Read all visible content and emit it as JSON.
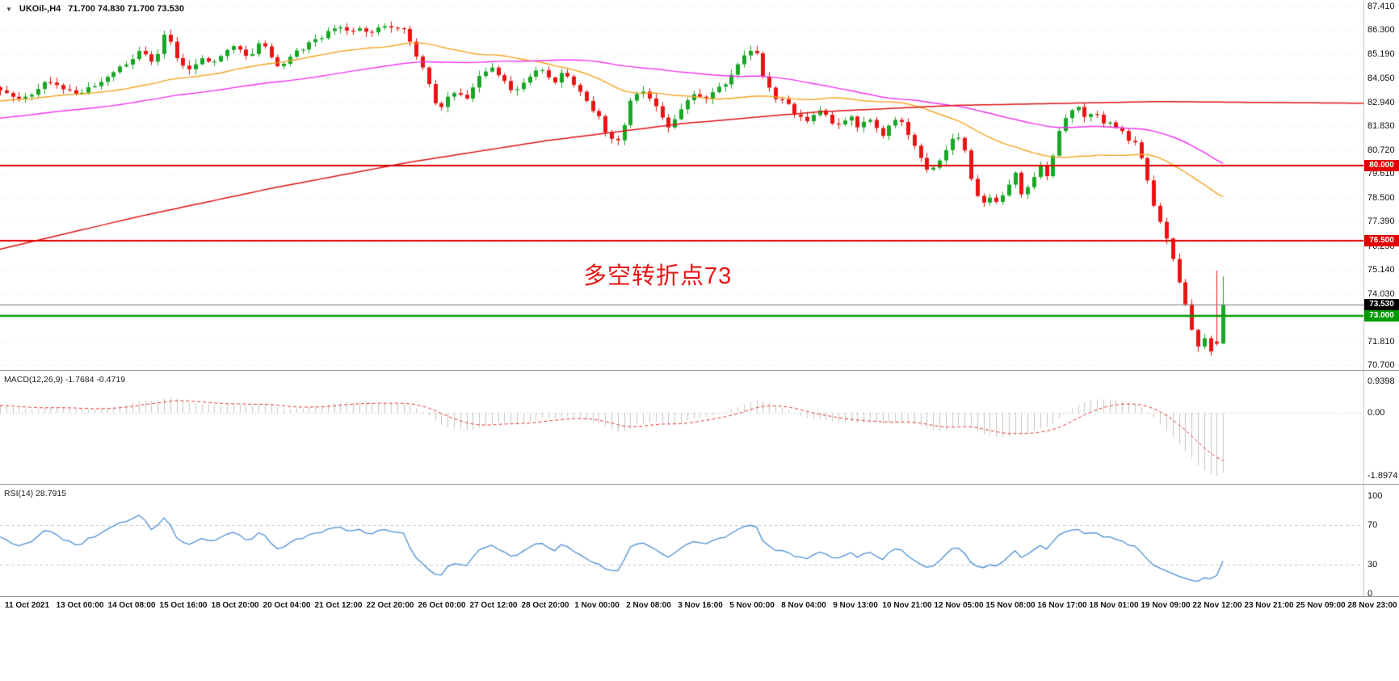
{
  "header": {
    "collapse_icon": "▼",
    "symbol_period": "UKOil-,H4",
    "ohlc_text": "71.700 74.830 71.700 73.530"
  },
  "annotation": {
    "text": "多空转折点73",
    "color": "#e81414"
  },
  "macd_panel": {
    "label": "MACD(12,26,9) -1.7684 -0.4719"
  },
  "rsi_panel": {
    "label": "RSI(14) 28.7915"
  },
  "chart_data": {
    "type": "candlestick",
    "symbol": "UKOil-",
    "timeframe": "H4",
    "current_ohlc": {
      "open": 71.7,
      "high": 74.83,
      "low": 71.7,
      "close": 73.53
    },
    "price_axis": {
      "max": 87.41,
      "min": 70.7,
      "labels": [
        "87.410",
        "86.300",
        "85.190",
        "84.050",
        "82.940",
        "81.830",
        "80.720",
        "79.610",
        "78.500",
        "77.390",
        "76.250",
        "75.140",
        "74.030",
        "71.810",
        "70.700"
      ]
    },
    "levels": [
      {
        "value": 80.0,
        "label": "80.000",
        "color": "#e00000",
        "width": 2
      },
      {
        "value": 76.5,
        "label": "76.500",
        "color": "#e00000",
        "width": 2
      },
      {
        "value": 73.0,
        "label": "73.000",
        "color": "#009a00",
        "width": 2.5
      }
    ],
    "current_price": {
      "value": 73.53,
      "label": "73.530",
      "badge_color": "#000000"
    },
    "candles": {
      "count": 195,
      "span_fraction": 0.897,
      "close_waypoints": [
        [
          0,
          83.6
        ],
        [
          0.02,
          83.1
        ],
        [
          0.04,
          84.0
        ],
        [
          0.06,
          83.3
        ],
        [
          0.08,
          83.9
        ],
        [
          0.1,
          84.6
        ],
        [
          0.115,
          85.3
        ],
        [
          0.125,
          84.7
        ],
        [
          0.135,
          86.2
        ],
        [
          0.145,
          85.0
        ],
        [
          0.155,
          84.4
        ],
        [
          0.165,
          85.1
        ],
        [
          0.175,
          84.8
        ],
        [
          0.19,
          85.5
        ],
        [
          0.205,
          85.1
        ],
        [
          0.215,
          85.9
        ],
        [
          0.225,
          84.5
        ],
        [
          0.24,
          85.1
        ],
        [
          0.255,
          85.9
        ],
        [
          0.27,
          86.2
        ],
        [
          0.285,
          86.45
        ],
        [
          0.3,
          86.2
        ],
        [
          0.315,
          86.5
        ],
        [
          0.33,
          86.3
        ],
        [
          0.34,
          85.1
        ],
        [
          0.35,
          83.9
        ],
        [
          0.358,
          82.4
        ],
        [
          0.365,
          83.2
        ],
        [
          0.373,
          83.6
        ],
        [
          0.38,
          82.9
        ],
        [
          0.392,
          84.3
        ],
        [
          0.402,
          84.6
        ],
        [
          0.412,
          83.9
        ],
        [
          0.422,
          83.4
        ],
        [
          0.432,
          84.2
        ],
        [
          0.442,
          84.5
        ],
        [
          0.452,
          83.8
        ],
        [
          0.462,
          84.4
        ],
        [
          0.472,
          83.6
        ],
        [
          0.482,
          82.8
        ],
        [
          0.492,
          82.0
        ],
        [
          0.502,
          80.9
        ],
        [
          0.51,
          81.9
        ],
        [
          0.518,
          83.4
        ],
        [
          0.528,
          83.6
        ],
        [
          0.538,
          82.4
        ],
        [
          0.548,
          81.7
        ],
        [
          0.558,
          82.7
        ],
        [
          0.568,
          83.4
        ],
        [
          0.578,
          83.1
        ],
        [
          0.588,
          83.6
        ],
        [
          0.598,
          84.2
        ],
        [
          0.608,
          85.0
        ],
        [
          0.616,
          85.6
        ],
        [
          0.624,
          84.2
        ],
        [
          0.632,
          83.2
        ],
        [
          0.642,
          82.9
        ],
        [
          0.652,
          82.3
        ],
        [
          0.662,
          82.0
        ],
        [
          0.67,
          82.7
        ],
        [
          0.678,
          82.1
        ],
        [
          0.686,
          81.9
        ],
        [
          0.694,
          82.4
        ],
        [
          0.702,
          81.8
        ],
        [
          0.712,
          82.1
        ],
        [
          0.722,
          81.4
        ],
        [
          0.73,
          82.3
        ],
        [
          0.738,
          81.9
        ],
        [
          0.746,
          81.0
        ],
        [
          0.754,
          80.1
        ],
        [
          0.762,
          79.7
        ],
        [
          0.77,
          80.5
        ],
        [
          0.778,
          81.1
        ],
        [
          0.784,
          81.4
        ],
        [
          0.79,
          80.6
        ],
        [
          0.796,
          78.8
        ],
        [
          0.802,
          78.2
        ],
        [
          0.808,
          78.7
        ],
        [
          0.814,
          78.3
        ],
        [
          0.822,
          78.9
        ],
        [
          0.83,
          79.6
        ],
        [
          0.836,
          78.5
        ],
        [
          0.842,
          79.3
        ],
        [
          0.85,
          80.0
        ],
        [
          0.856,
          79.5
        ],
        [
          0.862,
          80.7
        ],
        [
          0.868,
          81.9
        ],
        [
          0.874,
          82.4
        ],
        [
          0.882,
          82.7
        ],
        [
          0.888,
          82.2
        ],
        [
          0.894,
          82.5
        ],
        [
          0.902,
          82.1
        ],
        [
          0.91,
          81.8
        ],
        [
          0.918,
          81.5
        ],
        [
          0.926,
          81.1
        ],
        [
          0.932,
          80.7
        ],
        [
          0.938,
          79.4
        ],
        [
          0.944,
          78.0
        ],
        [
          0.95,
          77.1
        ],
        [
          0.956,
          76.3
        ],
        [
          0.962,
          75.1
        ],
        [
          0.968,
          73.7
        ],
        [
          0.974,
          72.3
        ],
        [
          0.98,
          71.4
        ],
        [
          0.985,
          71.9
        ],
        [
          0.989,
          71.2
        ],
        [
          0.993,
          72.0
        ],
        [
          0.997,
          71.7
        ],
        [
          1,
          73.53
        ]
      ],
      "prev_candle": {
        "open": 71.8,
        "high": 75.1,
        "low": 71.6,
        "close": 71.7
      },
      "last_candle": {
        "open": 71.7,
        "high": 74.83,
        "low": 71.7,
        "close": 73.53
      }
    },
    "warmup": {
      "count": 80,
      "start": 80.5,
      "end": 83.6
    },
    "moving_averages": {
      "fast": {
        "period": 34,
        "color": "#f4a422"
      },
      "mid": {
        "period": 75,
        "color": "#f032f0"
      },
      "long": {
        "color": "#dc1414",
        "path": [
          [
            0,
            76.1
          ],
          [
            0.1,
            77.6
          ],
          [
            0.2,
            78.95
          ],
          [
            0.3,
            80.15
          ],
          [
            0.4,
            81.15
          ],
          [
            0.5,
            81.95
          ],
          [
            0.6,
            82.5
          ],
          [
            0.7,
            82.8
          ],
          [
            0.85,
            82.98
          ],
          [
            1,
            82.9
          ]
        ]
      }
    },
    "colors": {
      "up": "#18a626",
      "down": "#e81414",
      "grid": "#e4e4e4",
      "macd_hist": "#c4c4c4",
      "macd_signal": "#e03030",
      "rsi_line": "#4a8fd4",
      "level_dash": "#c8c8c8",
      "price_line": "#777777"
    },
    "macd": {
      "params": [
        12,
        26,
        9
      ],
      "values": [
        -1.7684,
        -0.4719
      ],
      "axis_values": [
        0.9398,
        0,
        -1.8974
      ],
      "axis_labels": [
        "0.9398",
        "0.00",
        "-1.8974"
      ]
    },
    "rsi": {
      "period": 14,
      "value": 28.7915,
      "levels": [
        70,
        30
      ],
      "axis_values": [
        100,
        70,
        30,
        0
      ],
      "axis_labels": [
        "100",
        "70",
        "30",
        "0"
      ]
    },
    "time_labels": [
      "11 Oct 2021",
      "13 Oct 00:00",
      "14 Oct 08:00",
      "15 Oct 16:00",
      "18 Oct 20:00",
      "20 Oct 04:00",
      "21 Oct 12:00",
      "22 Oct 20:00",
      "26 Oct 00:00",
      "27 Oct 12:00",
      "28 Oct 20:00",
      "1 Nov 00:00",
      "2 Nov 08:00",
      "3 Nov 16:00",
      "5 Nov 00:00",
      "8 Nov 04:00",
      "9 Nov 13:00",
      "10 Nov 21:00",
      "12 Nov 05:00",
      "15 Nov 08:00",
      "16 Nov 17:00",
      "18 Nov 01:00",
      "19 Nov 09:00",
      "22 Nov 12:00",
      "23 Nov 21:00",
      "25 Nov 09:00",
      "28 Nov 23:00"
    ]
  }
}
